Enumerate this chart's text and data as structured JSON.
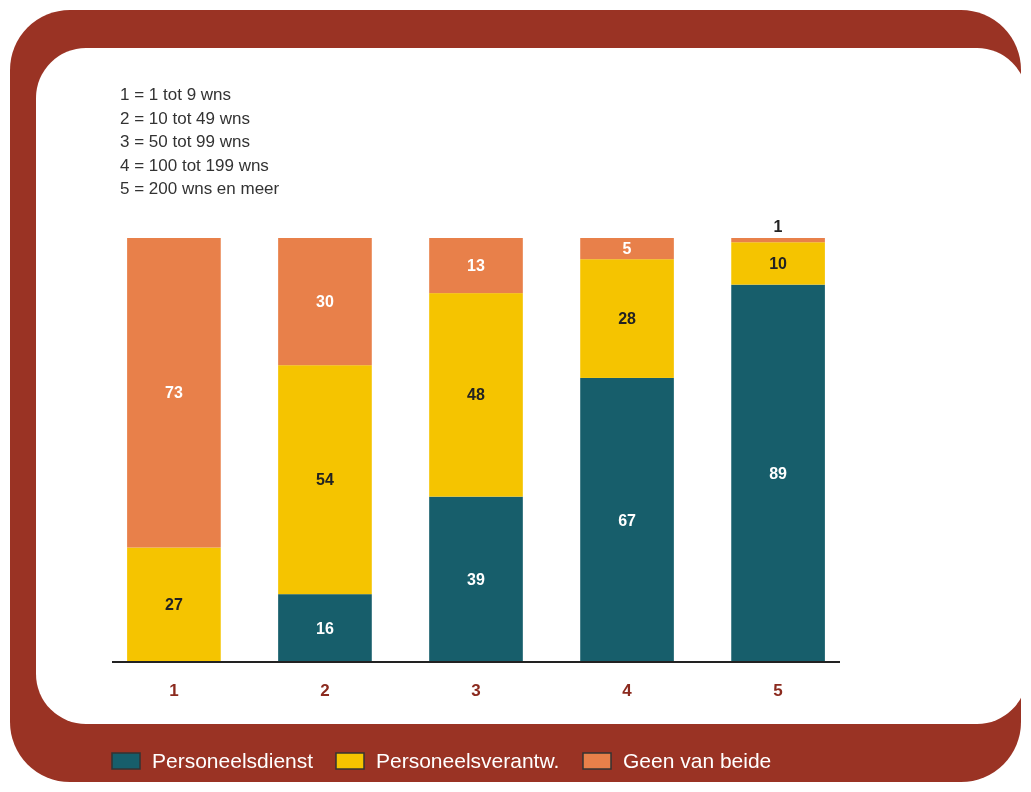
{
  "chart_data": {
    "type": "bar",
    "stacked": true,
    "data_labels": true,
    "legend": "bottom",
    "categories": [
      "1",
      "2",
      "3",
      "4",
      "5"
    ],
    "series": [
      {
        "name": "Personeelsdienst",
        "color": "#175e6b",
        "values": [
          null,
          16,
          39,
          67,
          89
        ]
      },
      {
        "name": "Personeelsverantw.",
        "color": "#f5c400",
        "values": [
          27,
          54,
          48,
          28,
          10
        ]
      },
      {
        "name": "Geen van beide",
        "color": "#e8804a",
        "values": [
          73,
          30,
          13,
          5,
          1
        ]
      }
    ],
    "annotations": [
      "1 = 1 tot 9 wns",
      "2 = 10 tot 49 wns",
      "3 = 50 tot 99 wns",
      "4 = 100 tot 199 wns",
      "5 = 200 wns en meer"
    ]
  }
}
